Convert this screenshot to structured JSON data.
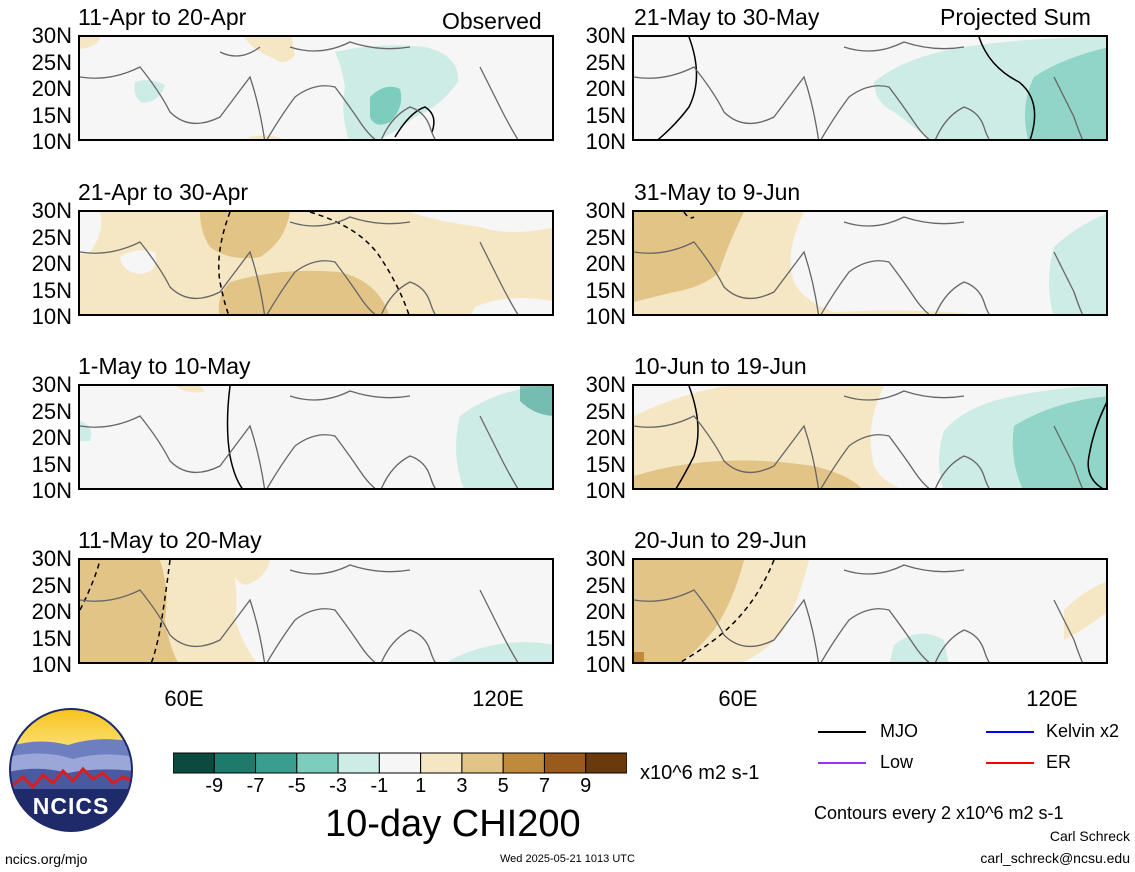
{
  "panels": {
    "left": [
      {
        "title": "11-Apr to 20-Apr",
        "tag": "Observed"
      },
      {
        "title": "21-Apr to 30-Apr",
        "tag": ""
      },
      {
        "title": "1-May to 10-May",
        "tag": ""
      },
      {
        "title": "11-May to 20-May",
        "tag": ""
      }
    ],
    "right": [
      {
        "title": "21-May to 30-May",
        "tag": "Projected Sum"
      },
      {
        "title": "31-May to 9-Jun",
        "tag": ""
      },
      {
        "title": "10-Jun to 19-Jun",
        "tag": ""
      },
      {
        "title": "20-Jun to 29-Jun",
        "tag": ""
      }
    ]
  },
  "latitude_labels": [
    "30N",
    "25N",
    "20N",
    "15N",
    "10N"
  ],
  "longitude_labels": [
    "60E",
    "120E"
  ],
  "colorbar": {
    "ticks": [
      "-9",
      "-7",
      "-5",
      "-3",
      "-1",
      "1",
      "3",
      "5",
      "7",
      "9"
    ],
    "colors": [
      "#0b4a3e",
      "#1e7a6a",
      "#3a9e8e",
      "#7ccdbe",
      "#cdece5",
      "#f6f6f6",
      "#f6e7c4",
      "#e2c487",
      "#c08a3c",
      "#9a5a1c",
      "#6a3a0a"
    ],
    "units": "x10^6 m2 s-1",
    "title": "10-day CHI200"
  },
  "legend": [
    {
      "label": "MJO",
      "color": "#000000"
    },
    {
      "label": "Kelvin x2",
      "color": "#0000ff"
    },
    {
      "label": "Low",
      "color": "#9933ff"
    },
    {
      "label": "ER",
      "color": "#ff0000"
    }
  ],
  "contour_note": "Contours every 2 x10^6 m2 s-1",
  "author": "Carl Schreck",
  "email": "carl_schreck@ncsu.edu",
  "site": "ncics.org/mjo",
  "timestamp": "Wed 2025-05-21 1013 UTC",
  "logo_text": "NCICS"
}
